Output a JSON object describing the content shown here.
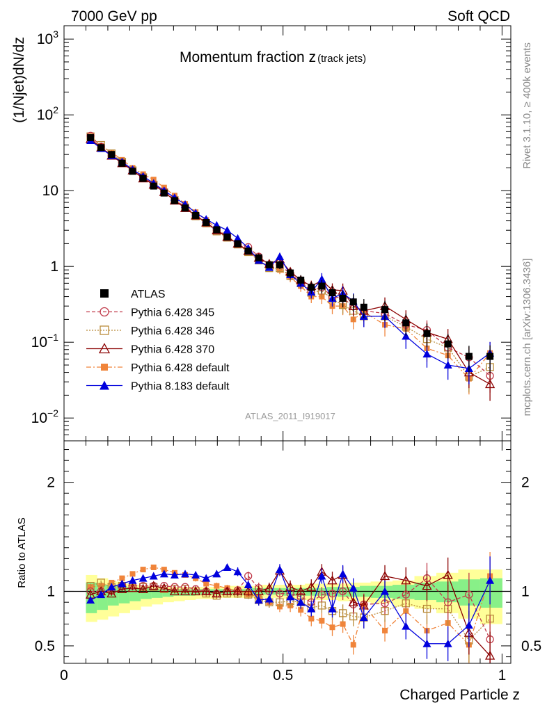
{
  "header": {
    "left": "7000 GeV pp",
    "right": "Soft QCD"
  },
  "side_text": {
    "rivet": "Rivet 3.1.10, ≥ 400k events",
    "mcplots": "mcplots.cern.ch [arXiv:1306.3436]"
  },
  "analysis_id": "ATLAS_2011_I919017",
  "colors": {
    "atlas": "#000000",
    "p345": "#c03a4a",
    "p346": "#b98b3a",
    "p370": "#8b0000",
    "pdef": "#f0843a",
    "p8": "#0000dd",
    "band_yellow": "#ffff99",
    "band_green": "#88f088"
  },
  "chart_data": [
    {
      "type": "line",
      "title": "Momentum fraction z",
      "title_sub": "(track jets)",
      "ylabel": "(1/Njet)dN/dz",
      "xlabel": "",
      "yscale": "log",
      "ylim": [
        0.005,
        1500
      ],
      "xlim": [
        0,
        1.02
      ],
      "ytick_labels": [
        {
          "v": 1000,
          "base": "10",
          "exp": "3"
        },
        {
          "v": 100,
          "base": "10",
          "exp": "2"
        },
        {
          "v": 10,
          "base": "10",
          "exp": ""
        },
        {
          "v": 1,
          "base": "1",
          "exp": ""
        },
        {
          "v": 0.1,
          "base": "10",
          "exp": "−1"
        },
        {
          "v": 0.01,
          "base": "10",
          "exp": "−2"
        }
      ],
      "x": [
        0.0605,
        0.0845,
        0.1085,
        0.1325,
        0.1565,
        0.1805,
        0.2045,
        0.2285,
        0.2525,
        0.2765,
        0.3005,
        0.3245,
        0.3485,
        0.3725,
        0.3965,
        0.4205,
        0.4445,
        0.4685,
        0.4925,
        0.5165,
        0.5405,
        0.5645,
        0.5885,
        0.6125,
        0.6365,
        0.6605,
        0.6845,
        0.7325,
        0.7805,
        0.8285,
        0.8765,
        0.9245,
        0.9725
      ],
      "series": [
        {
          "name": "ATLAS",
          "key": "atlas",
          "values": [
            50,
            37,
            30,
            23,
            18,
            14.5,
            11.5,
            9.3,
            7.4,
            5.9,
            4.7,
            3.8,
            3.05,
            2.45,
            2.0,
            1.6,
            1.3,
            1.05,
            1.05,
            0.82,
            0.66,
            0.53,
            0.55,
            0.45,
            0.38,
            0.34,
            0.29,
            0.27,
            0.18,
            0.13,
            0.095,
            0.065,
            0.065
          ]
        },
        {
          "name": "Pythia 6.428 345",
          "key": "p345",
          "values": [
            53,
            38,
            29,
            23.5,
            18.5,
            15,
            12,
            9.8,
            7.6,
            6.1,
            4.8,
            3.8,
            3.0,
            2.5,
            2.0,
            1.8,
            1.35,
            1.05,
            1.05,
            0.8,
            0.62,
            0.48,
            0.53,
            0.4,
            0.38,
            0.3,
            0.26,
            0.24,
            0.17,
            0.145,
            0.085,
            0.063,
            0.036
          ]
        },
        {
          "name": "Pythia 6.428 346",
          "key": "p346",
          "values": [
            52,
            40,
            31,
            24,
            18.5,
            15,
            12,
            9.5,
            7.5,
            6.0,
            4.6,
            3.7,
            2.9,
            2.4,
            1.95,
            1.55,
            1.2,
            0.95,
            0.95,
            0.75,
            0.6,
            0.45,
            0.48,
            0.37,
            0.31,
            0.26,
            0.22,
            0.22,
            0.16,
            0.11,
            0.085,
            0.035,
            0.047
          ]
        },
        {
          "name": "Pythia 6.428 370",
          "key": "p370",
          "values": [
            48,
            37,
            29,
            23,
            18.5,
            14.5,
            12,
            9.6,
            7.4,
            5.9,
            4.7,
            3.8,
            3.0,
            2.45,
            2.0,
            1.6,
            1.3,
            1.08,
            1.25,
            0.85,
            0.66,
            0.55,
            0.65,
            0.49,
            0.48,
            0.3,
            0.26,
            0.3,
            0.2,
            0.135,
            0.11,
            0.04,
            0.028
          ]
        },
        {
          "name": "Pythia 6.428 default",
          "key": "pdef",
          "values": [
            52,
            39,
            32,
            25.5,
            20,
            16.5,
            14,
            11,
            8.6,
            6.7,
            5.2,
            4.1,
            3.2,
            2.5,
            2.0,
            1.55,
            1.25,
            0.95,
            0.9,
            0.72,
            0.55,
            0.4,
            0.4,
            0.3,
            0.3,
            0.2,
            0.25,
            0.17,
            0.15,
            0.083,
            0.067,
            0.033,
            0.072
          ]
        },
        {
          "name": "Pythia 8.183 default",
          "key": "p8",
          "values": [
            46,
            36,
            29,
            24,
            19,
            15.5,
            12.5,
            10,
            8.1,
            6.6,
            5.1,
            4.2,
            3.5,
            3.0,
            2.35,
            1.75,
            1.2,
            0.97,
            1.35,
            0.78,
            0.6,
            0.46,
            0.68,
            0.38,
            0.44,
            0.35,
            0.22,
            0.22,
            0.12,
            0.07,
            0.05,
            0.045,
            0.072
          ]
        }
      ]
    },
    {
      "type": "line",
      "title": "",
      "ylabel": "Ratio to ATLAS",
      "xlabel": "Charged Particle z",
      "ylim": [
        0.34,
        2.38
      ],
      "xlim": [
        0,
        1.02
      ],
      "yticks": [
        0.5,
        1,
        2
      ],
      "ytick_labels": [
        "0.5",
        "1",
        "2"
      ],
      "xticks": [
        0,
        0.5,
        1
      ],
      "xtick_labels": [
        "0",
        "0.5",
        "1"
      ],
      "band_edges": [
        0.05,
        0.075,
        0.1,
        0.125,
        0.15,
        0.175,
        0.2,
        0.225,
        0.25,
        0.275,
        0.3,
        0.325,
        0.35,
        0.375,
        0.4,
        0.425,
        0.45,
        0.475,
        0.5,
        0.525,
        0.55,
        0.575,
        0.6,
        0.625,
        0.65,
        0.675,
        0.7,
        0.75,
        0.8,
        0.85,
        0.9,
        0.95,
        1.0
      ],
      "band_yellow_lo": [
        0.72,
        0.74,
        0.77,
        0.8,
        0.83,
        0.86,
        0.88,
        0.9,
        0.91,
        0.92,
        0.93,
        0.93,
        0.94,
        0.94,
        0.94,
        0.94,
        0.94,
        0.94,
        0.93,
        0.93,
        0.92,
        0.92,
        0.92,
        0.91,
        0.91,
        0.9,
        0.89,
        0.86,
        0.84,
        0.8,
        0.75,
        0.7
      ],
      "band_yellow_hi": [
        1.15,
        1.12,
        1.09,
        1.07,
        1.06,
        1.05,
        1.04,
        1.04,
        1.04,
        1.04,
        1.04,
        1.04,
        1.04,
        1.05,
        1.05,
        1.05,
        1.06,
        1.06,
        1.06,
        1.06,
        1.07,
        1.07,
        1.07,
        1.07,
        1.08,
        1.08,
        1.09,
        1.1,
        1.14,
        1.17,
        1.2,
        1.2
      ],
      "band_green_lo": [
        0.8,
        0.83,
        0.87,
        0.89,
        0.91,
        0.93,
        0.94,
        0.95,
        0.96,
        0.96,
        0.97,
        0.97,
        0.97,
        0.97,
        0.97,
        0.97,
        0.97,
        0.97,
        0.96,
        0.96,
        0.96,
        0.96,
        0.96,
        0.95,
        0.95,
        0.95,
        0.94,
        0.93,
        0.92,
        0.9,
        0.87,
        0.85
      ],
      "band_green_hi": [
        1.08,
        1.06,
        1.05,
        1.04,
        1.03,
        1.03,
        1.02,
        1.02,
        1.02,
        1.02,
        1.02,
        1.02,
        1.02,
        1.02,
        1.02,
        1.03,
        1.03,
        1.03,
        1.03,
        1.03,
        1.03,
        1.03,
        1.04,
        1.04,
        1.04,
        1.05,
        1.05,
        1.06,
        1.08,
        1.09,
        1.11,
        1.12
      ],
      "series": [
        {
          "name": "Pythia 6.428 345",
          "key": "p345",
          "values": [
            1.0,
            1.0,
            1.0,
            1.05,
            1.05,
            1.05,
            1.05,
            1.05,
            1.04,
            1.04,
            1.02,
            1.0,
            0.98,
            1.0,
            1.01,
            1.14,
            1.03,
            1.0,
            0.98,
            0.98,
            0.95,
            0.9,
            0.97,
            0.98,
            1.0,
            0.88,
            0.88,
            0.89,
            0.97,
            1.12,
            0.9,
            0.97,
            0.56
          ],
          "err": [
            0.02,
            0.02,
            0.02,
            0.02,
            0.02,
            0.02,
            0.02,
            0.02,
            0.02,
            0.02,
            0.03,
            0.03,
            0.03,
            0.03,
            0.04,
            0.04,
            0.05,
            0.05,
            0.05,
            0.06,
            0.06,
            0.07,
            0.07,
            0.08,
            0.08,
            0.09,
            0.1,
            0.1,
            0.12,
            0.14,
            0.16,
            0.2,
            0.22
          ]
        },
        {
          "name": "Pythia 6.428 346",
          "key": "p346",
          "values": [
            1.05,
            1.08,
            1.04,
            1.05,
            1.03,
            1.04,
            1.04,
            1.02,
            1.02,
            1.02,
            1.0,
            0.98,
            0.96,
            0.98,
            0.98,
            0.97,
            0.92,
            0.9,
            0.9,
            0.91,
            0.9,
            0.85,
            0.87,
            0.82,
            0.8,
            0.77,
            0.76,
            0.82,
            0.89,
            0.84,
            0.84,
            0.55,
            0.75
          ],
          "err": [
            0.02,
            0.02,
            0.02,
            0.02,
            0.02,
            0.02,
            0.02,
            0.02,
            0.02,
            0.02,
            0.03,
            0.03,
            0.03,
            0.03,
            0.04,
            0.04,
            0.05,
            0.05,
            0.05,
            0.06,
            0.06,
            0.07,
            0.07,
            0.08,
            0.08,
            0.09,
            0.1,
            0.1,
            0.12,
            0.14,
            0.16,
            0.2,
            0.22
          ]
        },
        {
          "name": "Pythia 6.428 370",
          "key": "p370",
          "values": [
            0.97,
            1.0,
            0.98,
            1.02,
            1.03,
            1.02,
            1.05,
            1.03,
            1.0,
            1.0,
            1.0,
            1.0,
            0.98,
            1.0,
            1.0,
            1.0,
            1.0,
            1.03,
            1.19,
            1.04,
            1.0,
            1.04,
            1.18,
            1.1,
            1.15,
            0.9,
            0.87,
            1.14,
            1.1,
            1.05,
            1.15,
            0.62,
            0.41
          ],
          "err": [
            0.02,
            0.02,
            0.02,
            0.02,
            0.02,
            0.02,
            0.02,
            0.02,
            0.02,
            0.02,
            0.03,
            0.03,
            0.03,
            0.03,
            0.04,
            0.04,
            0.05,
            0.05,
            0.05,
            0.06,
            0.06,
            0.07,
            0.07,
            0.08,
            0.08,
            0.09,
            0.1,
            0.1,
            0.12,
            0.14,
            0.16,
            0.2,
            0.22
          ]
        },
        {
          "name": "Pythia 6.428 default",
          "key": "pdef",
          "values": [
            1.04,
            1.05,
            1.08,
            1.12,
            1.16,
            1.2,
            1.22,
            1.2,
            1.17,
            1.15,
            1.12,
            1.07,
            1.05,
            1.03,
            1.0,
            0.97,
            0.95,
            0.9,
            0.86,
            0.87,
            0.83,
            0.75,
            0.73,
            0.67,
            0.7,
            0.51,
            0.87,
            0.64,
            0.82,
            0.64,
            0.71,
            0.51,
            1.14
          ],
          "err": [
            0.02,
            0.02,
            0.02,
            0.02,
            0.02,
            0.02,
            0.02,
            0.02,
            0.02,
            0.02,
            0.03,
            0.03,
            0.03,
            0.03,
            0.04,
            0.04,
            0.05,
            0.05,
            0.05,
            0.06,
            0.06,
            0.07,
            0.07,
            0.08,
            0.08,
            0.09,
            0.1,
            0.1,
            0.12,
            0.14,
            0.16,
            0.2,
            0.22
          ]
        },
        {
          "name": "Pythia 8.183 default",
          "key": "p8",
          "values": [
            0.92,
            0.97,
            1.04,
            1.07,
            1.1,
            1.12,
            1.14,
            1.16,
            1.15,
            1.16,
            1.15,
            1.12,
            1.16,
            1.22,
            1.18,
            1.06,
            0.92,
            0.93,
            1.2,
            0.95,
            0.9,
            0.84,
            1.14,
            0.84,
            1.16,
            1.03,
            0.76,
            1.0,
            0.68,
            0.52,
            0.52,
            0.69,
            1.1
          ],
          "err": [
            0.02,
            0.02,
            0.02,
            0.02,
            0.02,
            0.02,
            0.02,
            0.02,
            0.02,
            0.02,
            0.03,
            0.03,
            0.03,
            0.03,
            0.04,
            0.04,
            0.05,
            0.05,
            0.05,
            0.06,
            0.06,
            0.07,
            0.07,
            0.08,
            0.08,
            0.09,
            0.1,
            0.1,
            0.12,
            0.14,
            0.16,
            0.2,
            0.22
          ]
        }
      ]
    }
  ]
}
